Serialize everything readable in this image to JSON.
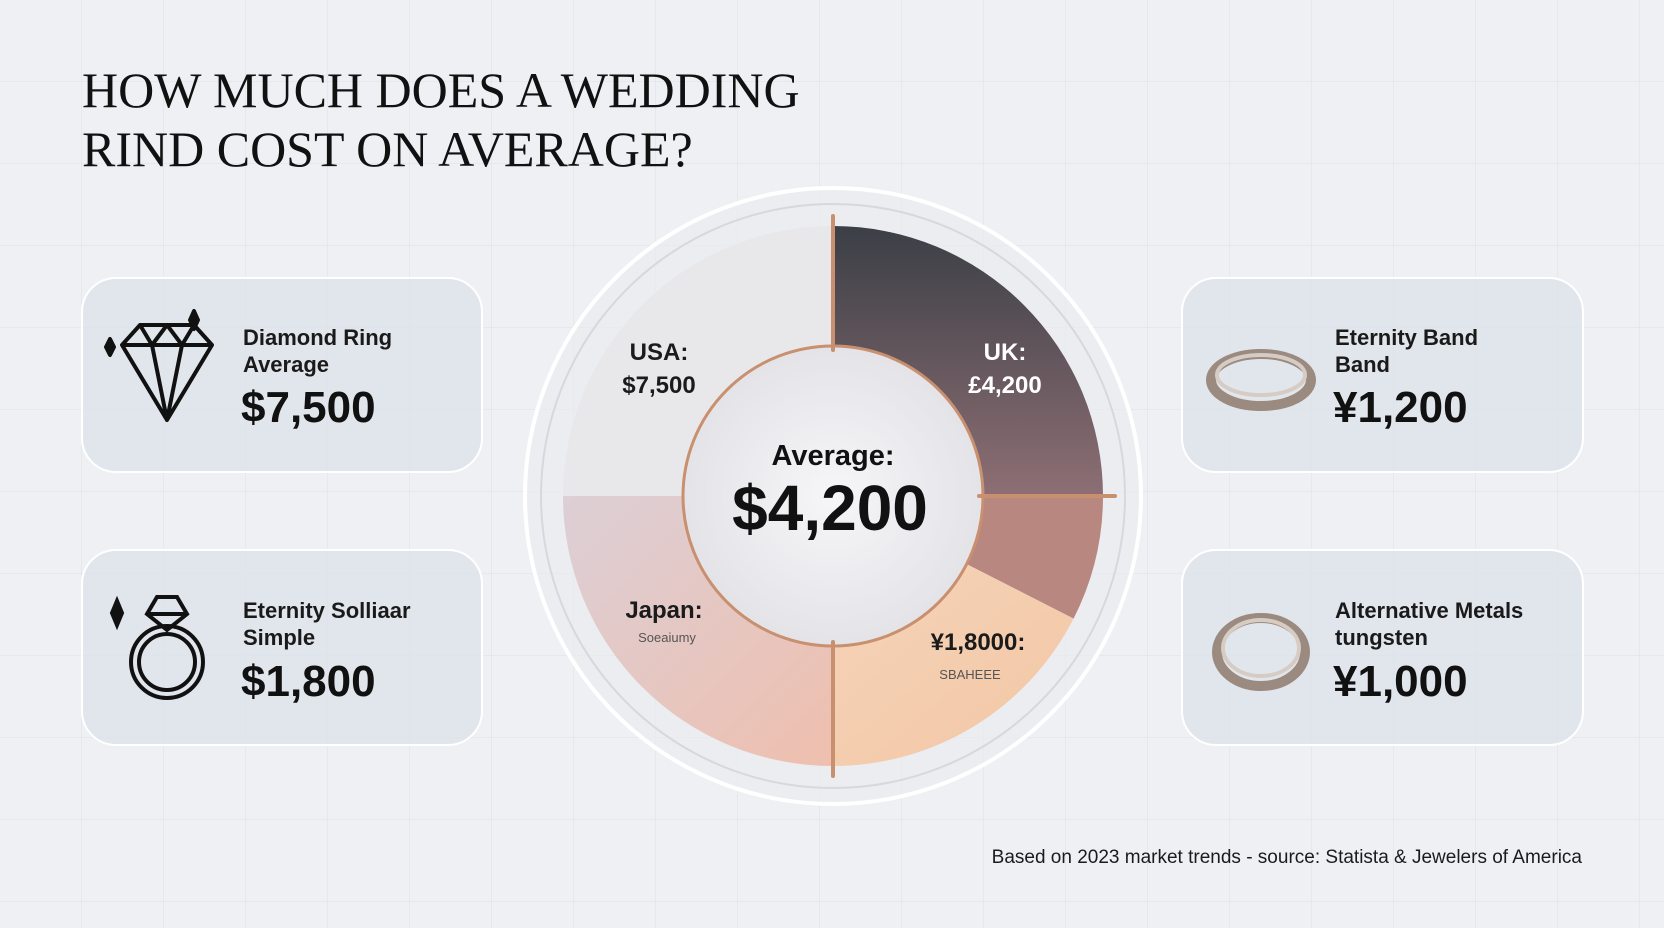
{
  "title": {
    "lines": [
      "HOW MUCH DOES A WEDDING",
      "RIND COST ON AVERAGE?"
    ]
  },
  "cards": [
    {
      "lines": [
        "Diamond Ring",
        "Average"
      ],
      "price": "$7,500"
    },
    {
      "lines": [
        "Eternity Solliaar",
        "Simple"
      ],
      "price": "$1,800"
    },
    {
      "lines": [
        "Eternity Band",
        "Band"
      ],
      "price": "¥1,200"
    },
    {
      "lines": [
        "Alternative Metals",
        "tungsten"
      ],
      "price": "¥1,000"
    }
  ],
  "donut": {
    "segments": [
      {
        "label": "USA:",
        "value": "$7,500"
      },
      {
        "label": "UK:",
        "value": "£4,200"
      },
      {
        "label": "Japan:",
        "sub": "Soeaiumy"
      },
      {
        "label": "¥1,8000:",
        "sub": "SBAHEEE"
      }
    ],
    "center": {
      "label": "Average:",
      "value": "$4,200"
    }
  },
  "footnote": "Based on 2023 market trends - source: Statista & Jewelers of America"
}
